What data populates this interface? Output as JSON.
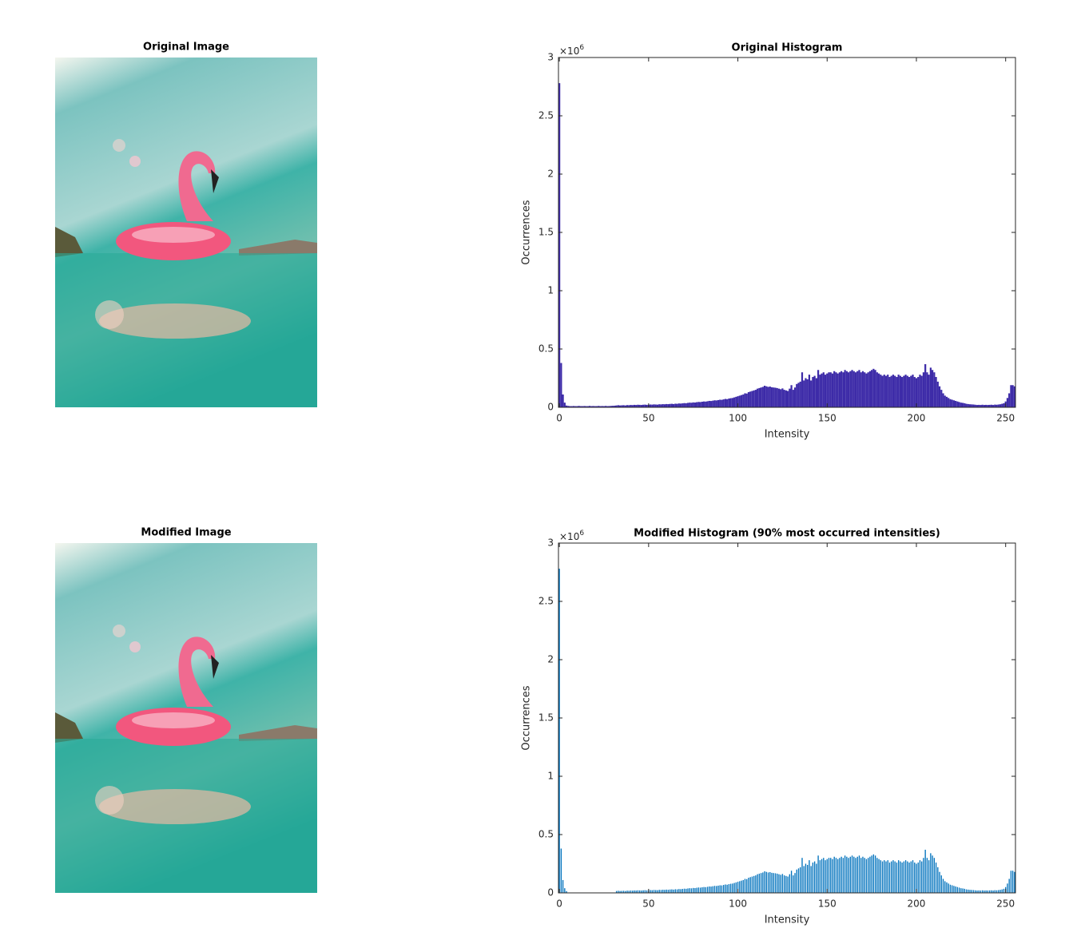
{
  "images": [
    {
      "title": "Original Image"
    },
    {
      "title": "Modified Image"
    }
  ],
  "chart_data": [
    {
      "type": "bar",
      "title": "Original Histogram",
      "x_label": "Intensity",
      "y_label": "Occurrences",
      "y_multiplier": "×10",
      "y_multiplier_exponent": "6",
      "color": "#3d2ba8",
      "bar_width": 1,
      "xlim": [
        -0.5,
        255.5
      ],
      "xticks": [
        0,
        50,
        100,
        150,
        200,
        250
      ],
      "ylim": [
        0,
        3
      ],
      "yticks": [
        0,
        0.5,
        1,
        1.5,
        2,
        2.5,
        3
      ],
      "x": [
        0,
        1,
        2,
        3,
        4,
        5,
        6,
        7,
        8,
        9,
        10,
        11,
        12,
        13,
        14,
        15,
        16,
        17,
        18,
        19,
        20,
        21,
        22,
        23,
        24,
        25,
        26,
        27,
        28,
        29,
        30,
        31,
        32,
        33,
        34,
        35,
        36,
        37,
        38,
        39,
        40,
        41,
        42,
        43,
        44,
        45,
        46,
        47,
        48,
        49,
        50,
        51,
        52,
        53,
        54,
        55,
        56,
        57,
        58,
        59,
        60,
        61,
        62,
        63,
        64,
        65,
        66,
        67,
        68,
        69,
        70,
        71,
        72,
        73,
        74,
        75,
        76,
        77,
        78,
        79,
        80,
        81,
        82,
        83,
        84,
        85,
        86,
        87,
        88,
        89,
        90,
        91,
        92,
        93,
        94,
        95,
        96,
        97,
        98,
        99,
        100,
        101,
        102,
        103,
        104,
        105,
        106,
        107,
        108,
        109,
        110,
        111,
        112,
        113,
        114,
        115,
        116,
        117,
        118,
        119,
        120,
        121,
        122,
        123,
        124,
        125,
        126,
        127,
        128,
        129,
        130,
        131,
        132,
        133,
        134,
        135,
        136,
        137,
        138,
        139,
        140,
        141,
        142,
        143,
        144,
        145,
        146,
        147,
        148,
        149,
        150,
        151,
        152,
        153,
        154,
        155,
        156,
        157,
        158,
        159,
        160,
        161,
        162,
        163,
        164,
        165,
        166,
        167,
        168,
        169,
        170,
        171,
        172,
        173,
        174,
        175,
        176,
        177,
        178,
        179,
        180,
        181,
        182,
        183,
        184,
        185,
        186,
        187,
        188,
        189,
        190,
        191,
        192,
        193,
        194,
        195,
        196,
        197,
        198,
        199,
        200,
        201,
        202,
        203,
        204,
        205,
        206,
        207,
        208,
        209,
        210,
        211,
        212,
        213,
        214,
        215,
        216,
        217,
        218,
        219,
        220,
        221,
        222,
        223,
        224,
        225,
        226,
        227,
        228,
        229,
        230,
        231,
        232,
        233,
        234,
        235,
        236,
        237,
        238,
        239,
        240,
        241,
        242,
        243,
        244,
        245,
        246,
        247,
        248,
        249,
        250,
        251,
        252,
        253,
        254,
        255
      ],
      "values": [
        2.78,
        0.38,
        0.11,
        0.04,
        0.015,
        0.012,
        0.01,
        0.01,
        0.011,
        0.01,
        0.01,
        0.012,
        0.01,
        0.01,
        0.011,
        0.01,
        0.01,
        0.012,
        0.01,
        0.011,
        0.01,
        0.01,
        0.012,
        0.01,
        0.011,
        0.01,
        0.012,
        0.01,
        0.011,
        0.012,
        0.013,
        0.014,
        0.016,
        0.018,
        0.016,
        0.017,
        0.018,
        0.016,
        0.019,
        0.018,
        0.02,
        0.019,
        0.021,
        0.02,
        0.022,
        0.021,
        0.02,
        0.022,
        0.023,
        0.021,
        0.022,
        0.024,
        0.023,
        0.025,
        0.024,
        0.023,
        0.026,
        0.025,
        0.027,
        0.026,
        0.028,
        0.027,
        0.029,
        0.03,
        0.028,
        0.031,
        0.03,
        0.033,
        0.032,
        0.034,
        0.036,
        0.035,
        0.038,
        0.04,
        0.039,
        0.042,
        0.041,
        0.044,
        0.046,
        0.045,
        0.048,
        0.05,
        0.049,
        0.052,
        0.055,
        0.054,
        0.057,
        0.06,
        0.059,
        0.062,
        0.065,
        0.064,
        0.068,
        0.072,
        0.07,
        0.075,
        0.078,
        0.08,
        0.085,
        0.09,
        0.095,
        0.1,
        0.105,
        0.11,
        0.12,
        0.118,
        0.13,
        0.135,
        0.14,
        0.145,
        0.15,
        0.16,
        0.165,
        0.17,
        0.175,
        0.185,
        0.18,
        0.175,
        0.178,
        0.172,
        0.17,
        0.168,
        0.165,
        0.16,
        0.155,
        0.162,
        0.15,
        0.145,
        0.14,
        0.16,
        0.19,
        0.15,
        0.17,
        0.2,
        0.21,
        0.22,
        0.3,
        0.23,
        0.25,
        0.24,
        0.28,
        0.23,
        0.26,
        0.27,
        0.25,
        0.32,
        0.28,
        0.29,
        0.3,
        0.28,
        0.29,
        0.3,
        0.3,
        0.29,
        0.31,
        0.3,
        0.29,
        0.3,
        0.31,
        0.3,
        0.32,
        0.31,
        0.3,
        0.31,
        0.32,
        0.31,
        0.3,
        0.31,
        0.32,
        0.3,
        0.31,
        0.3,
        0.29,
        0.3,
        0.31,
        0.32,
        0.33,
        0.32,
        0.3,
        0.29,
        0.28,
        0.27,
        0.28,
        0.27,
        0.28,
        0.26,
        0.27,
        0.28,
        0.27,
        0.26,
        0.28,
        0.27,
        0.26,
        0.27,
        0.28,
        0.27,
        0.26,
        0.27,
        0.28,
        0.26,
        0.25,
        0.26,
        0.28,
        0.27,
        0.3,
        0.37,
        0.3,
        0.28,
        0.34,
        0.32,
        0.3,
        0.26,
        0.22,
        0.18,
        0.15,
        0.12,
        0.1,
        0.09,
        0.08,
        0.07,
        0.065,
        0.06,
        0.055,
        0.05,
        0.045,
        0.04,
        0.038,
        0.035,
        0.03,
        0.028,
        0.026,
        0.025,
        0.024,
        0.022,
        0.02,
        0.021,
        0.02,
        0.022,
        0.02,
        0.021,
        0.02,
        0.021,
        0.022,
        0.02,
        0.023,
        0.022,
        0.024,
        0.026,
        0.03,
        0.035,
        0.05,
        0.08,
        0.12,
        0.19,
        0.19,
        0.18
      ]
    },
    {
      "type": "bar",
      "title": "Modified Histogram (90% most occurred intensities)",
      "x_label": "Intensity",
      "y_label": "Occurrences",
      "y_multiplier": "×10",
      "y_multiplier_exponent": "6",
      "color": "#0072bd",
      "bar_width": 0.6,
      "xlim": [
        -0.5,
        255.5
      ],
      "xticks": [
        0,
        50,
        100,
        150,
        200,
        250
      ],
      "ylim": [
        0,
        3
      ],
      "yticks": [
        0,
        0.5,
        1,
        1.5,
        2,
        2.5,
        3
      ],
      "x": [
        0,
        1,
        2,
        3,
        4,
        5,
        6,
        7,
        8,
        9,
        10,
        11,
        12,
        13,
        14,
        15,
        16,
        17,
        18,
        19,
        20,
        21,
        22,
        23,
        24,
        25,
        26,
        27,
        28,
        29,
        30,
        31,
        32,
        33,
        34,
        35,
        36,
        37,
        38,
        39,
        40,
        41,
        42,
        43,
        44,
        45,
        46,
        47,
        48,
        49,
        50,
        51,
        52,
        53,
        54,
        55,
        56,
        57,
        58,
        59,
        60,
        61,
        62,
        63,
        64,
        65,
        66,
        67,
        68,
        69,
        70,
        71,
        72,
        73,
        74,
        75,
        76,
        77,
        78,
        79,
        80,
        81,
        82,
        83,
        84,
        85,
        86,
        87,
        88,
        89,
        90,
        91,
        92,
        93,
        94,
        95,
        96,
        97,
        98,
        99,
        100,
        101,
        102,
        103,
        104,
        105,
        106,
        107,
        108,
        109,
        110,
        111,
        112,
        113,
        114,
        115,
        116,
        117,
        118,
        119,
        120,
        121,
        122,
        123,
        124,
        125,
        126,
        127,
        128,
        129,
        130,
        131,
        132,
        133,
        134,
        135,
        136,
        137,
        138,
        139,
        140,
        141,
        142,
        143,
        144,
        145,
        146,
        147,
        148,
        149,
        150,
        151,
        152,
        153,
        154,
        155,
        156,
        157,
        158,
        159,
        160,
        161,
        162,
        163,
        164,
        165,
        166,
        167,
        168,
        169,
        170,
        171,
        172,
        173,
        174,
        175,
        176,
        177,
        178,
        179,
        180,
        181,
        182,
        183,
        184,
        185,
        186,
        187,
        188,
        189,
        190,
        191,
        192,
        193,
        194,
        195,
        196,
        197,
        198,
        199,
        200,
        201,
        202,
        203,
        204,
        205,
        206,
        207,
        208,
        209,
        210,
        211,
        212,
        213,
        214,
        215,
        216,
        217,
        218,
        219,
        220,
        221,
        222,
        223,
        224,
        225,
        226,
        227,
        228,
        229,
        230,
        231,
        232,
        233,
        234,
        235,
        236,
        237,
        238,
        239,
        240,
        241,
        242,
        243,
        244,
        245,
        246,
        247,
        248,
        249,
        250,
        251,
        252,
        253,
        254,
        255
      ],
      "values": [
        2.78,
        0.38,
        0.11,
        0.04,
        0.015,
        0,
        0,
        0,
        0,
        0,
        0,
        0,
        0,
        0,
        0,
        0,
        0,
        0,
        0,
        0,
        0,
        0,
        0,
        0,
        0,
        0,
        0,
        0,
        0,
        0,
        0,
        0,
        0.016,
        0.018,
        0.016,
        0.017,
        0.018,
        0.016,
        0.019,
        0.018,
        0.02,
        0.019,
        0.021,
        0.02,
        0.022,
        0.021,
        0.02,
        0.022,
        0.023,
        0.021,
        0.022,
        0.024,
        0.023,
        0.025,
        0.024,
        0.023,
        0.026,
        0.025,
        0.027,
        0.026,
        0.028,
        0.027,
        0.029,
        0.03,
        0.028,
        0.031,
        0.03,
        0.033,
        0.032,
        0.034,
        0.036,
        0.035,
        0.038,
        0.04,
        0.039,
        0.042,
        0.041,
        0.044,
        0.046,
        0.045,
        0.048,
        0.05,
        0.049,
        0.052,
        0.055,
        0.054,
        0.057,
        0.06,
        0.059,
        0.062,
        0.065,
        0.064,
        0.068,
        0.072,
        0.07,
        0.075,
        0.078,
        0.08,
        0.085,
        0.09,
        0.095,
        0.1,
        0.105,
        0.11,
        0.12,
        0.118,
        0.13,
        0.135,
        0.14,
        0.145,
        0.15,
        0.16,
        0.165,
        0.17,
        0.175,
        0.185,
        0.18,
        0.175,
        0.178,
        0.172,
        0.17,
        0.168,
        0.165,
        0.16,
        0.155,
        0.162,
        0.15,
        0.145,
        0.14,
        0.16,
        0.19,
        0.15,
        0.17,
        0.2,
        0.21,
        0.22,
        0.3,
        0.23,
        0.25,
        0.24,
        0.28,
        0.23,
        0.26,
        0.27,
        0.25,
        0.32,
        0.28,
        0.29,
        0.3,
        0.28,
        0.29,
        0.3,
        0.3,
        0.29,
        0.31,
        0.3,
        0.29,
        0.3,
        0.31,
        0.3,
        0.32,
        0.31,
        0.3,
        0.31,
        0.32,
        0.31,
        0.3,
        0.31,
        0.32,
        0.3,
        0.31,
        0.3,
        0.29,
        0.3,
        0.31,
        0.32,
        0.33,
        0.32,
        0.3,
        0.29,
        0.28,
        0.27,
        0.28,
        0.27,
        0.28,
        0.26,
        0.27,
        0.28,
        0.27,
        0.26,
        0.28,
        0.27,
        0.26,
        0.27,
        0.28,
        0.27,
        0.26,
        0.27,
        0.28,
        0.26,
        0.25,
        0.26,
        0.28,
        0.27,
        0.3,
        0.37,
        0.3,
        0.28,
        0.34,
        0.32,
        0.3,
        0.26,
        0.22,
        0.18,
        0.15,
        0.12,
        0.1,
        0.09,
        0.08,
        0.07,
        0.065,
        0.06,
        0.055,
        0.05,
        0.045,
        0.04,
        0.038,
        0.035,
        0.03,
        0.028,
        0.026,
        0.025,
        0.024,
        0.022,
        0.02,
        0.021,
        0.02,
        0.022,
        0.02,
        0.021,
        0.02,
        0.021,
        0.022,
        0.02,
        0.023,
        0.022,
        0.024,
        0.026,
        0.03,
        0.035,
        0.05,
        0.08,
        0.12,
        0.19,
        0.19,
        0.18
      ]
    }
  ]
}
